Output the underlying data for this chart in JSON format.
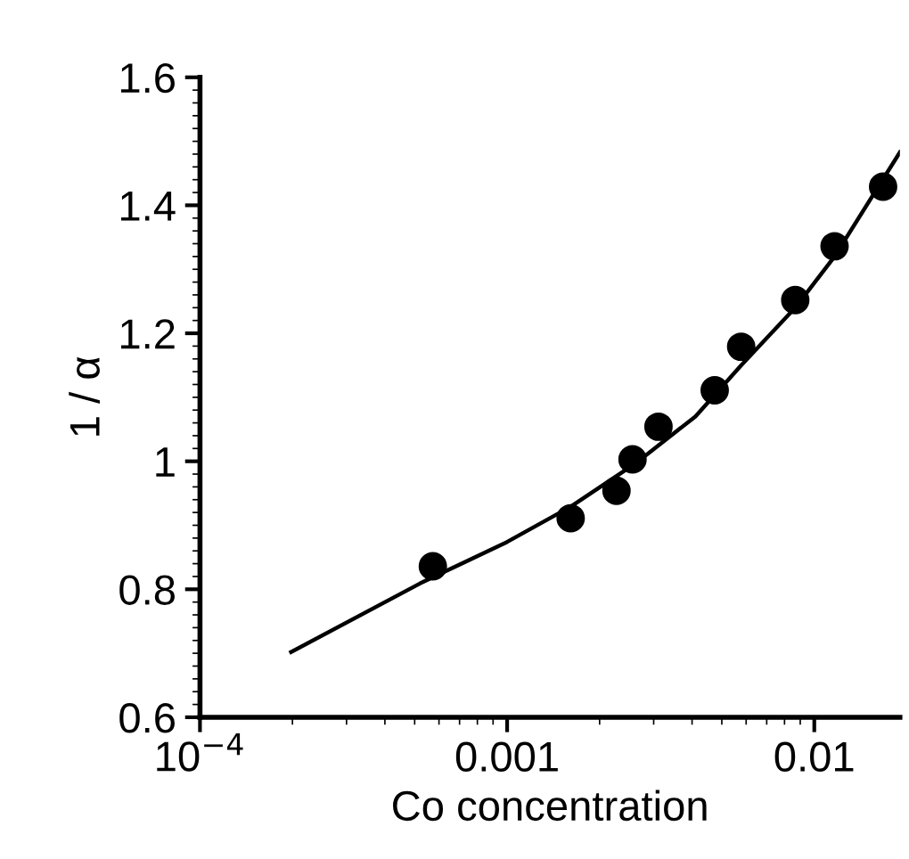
{
  "chart_data": {
    "type": "scatter",
    "xlabel": "Co concentration",
    "ylabel": "1 / α",
    "log": "x",
    "xlim": [
      0.0001,
      0.019
    ],
    "xticks": [
      {
        "value": 0.0001,
        "label": "10$^{−4}$"
      },
      0.001,
      0.01
    ],
    "ylim": [
      0.6,
      1.6
    ],
    "yticks": [
      0.6,
      0.8,
      1,
      1.2,
      1.4,
      1.6
    ],
    "grid": false,
    "legend": false,
    "series": [
      {
        "color": "#000000",
        "marker": "circle",
        "x": [
          0.000573,
          0.00161,
          0.00227,
          0.00256,
          0.00311,
          0.00474,
          0.00578,
          0.00867,
          0.01164,
          0.01675
        ],
        "values": [
          0.836,
          0.911,
          0.954,
          1.003,
          1.054,
          1.111,
          1.179,
          1.252,
          1.336,
          1.429
        ]
      },
      {
        "type": "line",
        "color": "#000000",
        "marker": "none",
        "line_style": "solid",
        "x": [
          0.000198,
          0.00052,
          0.001,
          0.00161,
          0.00264,
          0.0041,
          0.00578,
          0.00867,
          0.01164,
          0.019
        ],
        "values": [
          0.702,
          0.809,
          0.874,
          0.929,
          0.998,
          1.07,
          1.15,
          1.24,
          1.32,
          1.483
        ]
      }
    ]
  }
}
